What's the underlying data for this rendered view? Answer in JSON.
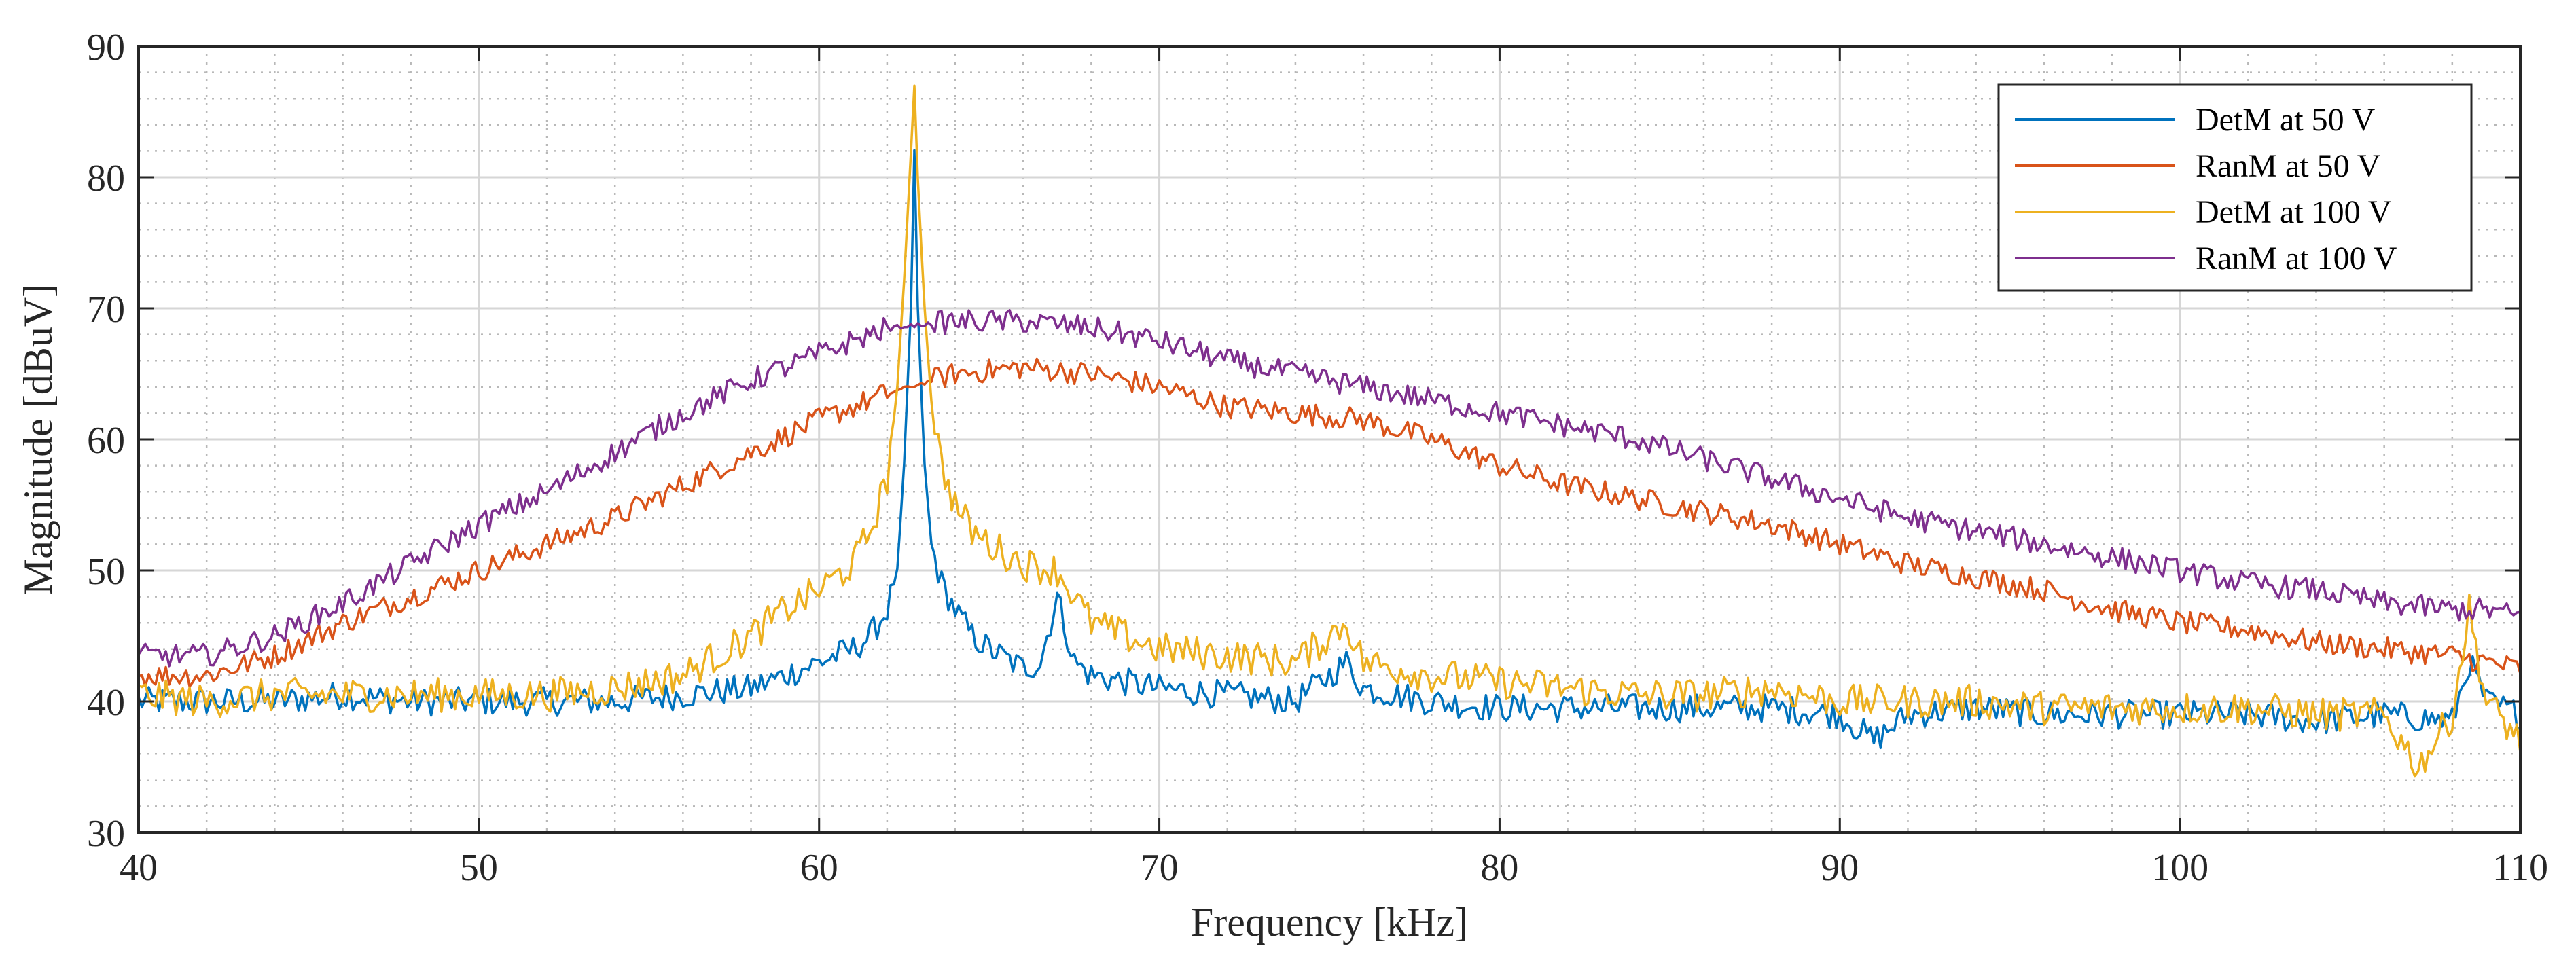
{
  "chart_data": {
    "type": "line",
    "title": "",
    "xlabel": "Frequency [kHz]",
    "ylabel": "Magnitude [dBuV]",
    "xlim": [
      40,
      110
    ],
    "ylim": [
      30,
      90
    ],
    "xticks": [
      40,
      50,
      60,
      70,
      80,
      90,
      100,
      110
    ],
    "yticks": [
      30,
      40,
      50,
      60,
      70,
      80,
      90
    ],
    "xtick_labels": [
      "40",
      "50",
      "60",
      "70",
      "80",
      "90",
      "100",
      "110"
    ],
    "ytick_labels": [
      "30",
      "40",
      "50",
      "60",
      "70",
      "80",
      "90"
    ],
    "grid": true,
    "minor_grid": true,
    "legend_position": "top-right",
    "series": [
      {
        "name": "DetM at 50 V",
        "color": "#0072BD",
        "x": [
          40,
          42,
          44,
          46,
          48,
          50,
          52,
          54,
          56,
          58,
          59,
          60,
          61,
          61.5,
          62,
          62.3,
          62.5,
          62.7,
          62.8,
          62.9,
          63.1,
          63.3,
          63.6,
          64,
          64.5,
          65,
          66,
          66.5,
          67,
          67.2,
          67.5,
          68,
          70,
          72,
          74,
          75.5,
          76,
          78,
          80,
          82,
          84,
          86,
          88,
          90,
          91,
          92,
          94,
          96,
          98,
          100,
          102,
          104,
          106,
          108,
          108.5,
          109,
          110
        ],
        "values": [
          40,
          40,
          40,
          40.5,
          40,
          40,
          40,
          40,
          40.5,
          41,
          42,
          43,
          44,
          45,
          47,
          50,
          58,
          70,
          82,
          70,
          58,
          52,
          49,
          47,
          45,
          44,
          42.5,
          43,
          48,
          46,
          43,
          42,
          41,
          40.5,
          40,
          43,
          41,
          40,
          39.5,
          39.5,
          39.5,
          39.5,
          39.5,
          39,
          37,
          39,
          39.5,
          39,
          39,
          39,
          39,
          38.5,
          39,
          38.5,
          43,
          40,
          39
        ]
      },
      {
        "name": "RanM at 50 V",
        "color": "#D95319",
        "x": [
          40,
          42,
          44,
          46,
          48,
          50,
          52,
          54,
          56,
          58,
          60,
          62,
          64,
          66,
          68,
          70,
          72,
          74,
          76,
          78,
          80,
          82,
          84,
          86,
          88,
          90,
          92,
          94,
          96,
          98,
          100,
          102,
          104,
          106,
          108,
          109,
          110
        ],
        "values": [
          42,
          42,
          43.5,
          46,
          48,
          50,
          52,
          54,
          56.5,
          59,
          61.5,
          63.5,
          65,
          65.5,
          65,
          64,
          62.5,
          62,
          61.5,
          60,
          58,
          56.5,
          55.5,
          54.5,
          53.5,
          52,
          50.5,
          49.5,
          48.5,
          47,
          46,
          45.5,
          44.5,
          44,
          43.5,
          43,
          42.5
        ]
      },
      {
        "name": "DetM at 100 V",
        "color": "#EDB120",
        "x": [
          40,
          42,
          44,
          46,
          48,
          50,
          52,
          54,
          56,
          57,
          58,
          59,
          60,
          61,
          61.5,
          62,
          62.3,
          62.5,
          62.7,
          62.8,
          62.9,
          63.1,
          63.3,
          63.6,
          64,
          64.5,
          65,
          66,
          67,
          67.5,
          68,
          70,
          72,
          74,
          75.5,
          76,
          78,
          80,
          82,
          84,
          86,
          88,
          90,
          92,
          94,
          96,
          98,
          100,
          102,
          104,
          106,
          107,
          108,
          108.5,
          109,
          110
        ],
        "values": [
          40.5,
          40,
          40.5,
          40.5,
          40.5,
          40.5,
          40.5,
          41,
          42,
          43.5,
          45,
          47,
          48.5,
          50.5,
          53,
          57,
          64,
          72,
          82,
          87,
          80,
          70,
          63,
          58,
          55,
          53,
          52,
          50.5,
          50,
          48,
          46,
          44,
          43.5,
          43,
          46,
          43,
          42,
          41.5,
          41,
          40.5,
          40.5,
          41,
          40,
          40,
          40,
          39.5,
          39.5,
          39.5,
          39.5,
          39,
          39,
          35,
          39,
          47,
          40,
          37
        ]
      },
      {
        "name": "RanM at 100 V",
        "color": "#7E2F8E",
        "x": [
          40,
          42,
          44,
          46,
          48,
          50,
          52,
          54,
          56,
          58,
          60,
          62,
          64,
          66,
          68,
          70,
          72,
          74,
          76,
          78,
          80,
          82,
          84,
          86,
          88,
          90,
          92,
          94,
          96,
          98,
          100,
          102,
          104,
          106,
          108,
          109,
          110
        ],
        "values": [
          43.5,
          43.5,
          45,
          47.5,
          50.5,
          53.5,
          56,
          59,
          62,
          64.5,
          66.5,
          68.5,
          69,
          69,
          68.5,
          67.5,
          66,
          65,
          64,
          63,
          62,
          61,
          60,
          58.5,
          57,
          55.5,
          54,
          53,
          52,
          51,
          50,
          49,
          48.5,
          47.5,
          47,
          47,
          46.5
        ]
      }
    ]
  }
}
